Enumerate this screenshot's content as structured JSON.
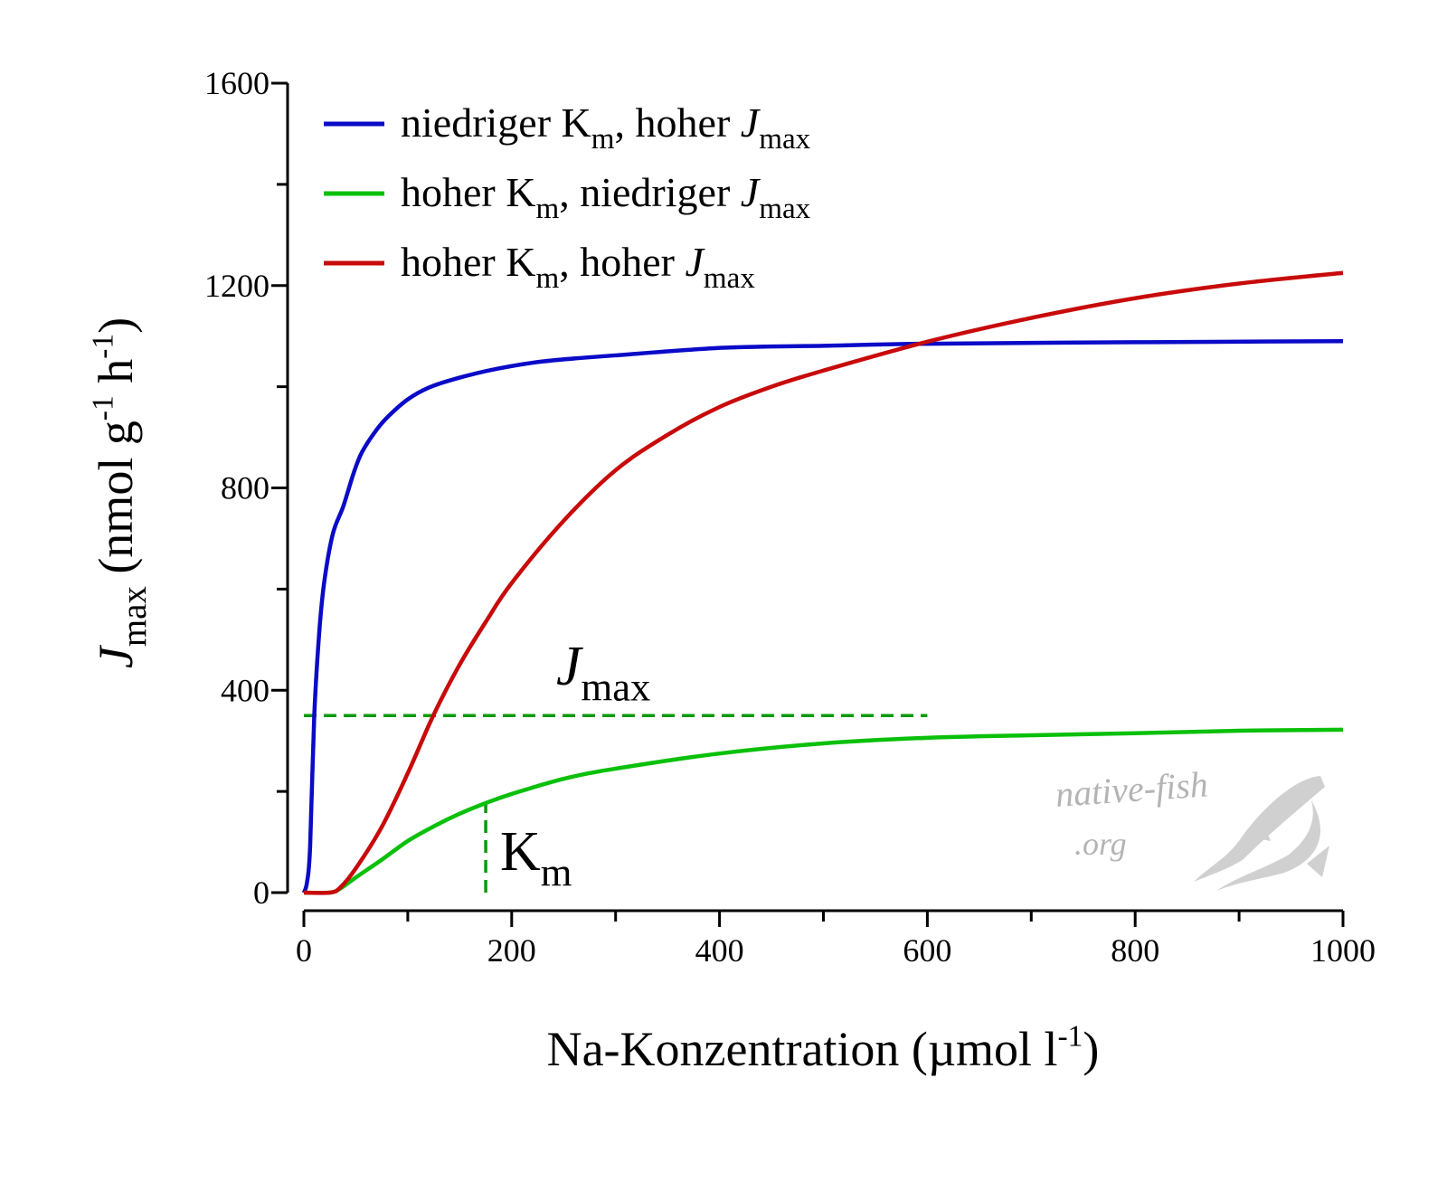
{
  "chart_data": {
    "type": "line",
    "title": "",
    "xlabel": [
      {
        "t": "Na-Konzentration (µmol l",
        "s": "n"
      },
      {
        "t": "-1",
        "s": "sup"
      },
      {
        "t": ")",
        "s": "n"
      }
    ],
    "ylabel": [
      {
        "t": "J",
        "s": "i"
      },
      {
        "t": "max",
        "s": "sub"
      },
      {
        "t": " (nmol g",
        "s": "n"
      },
      {
        "t": "-1",
        "s": "sup"
      },
      {
        "t": " h",
        "s": "n"
      },
      {
        "t": "-1",
        "s": "sup"
      },
      {
        "t": ")",
        "s": "n"
      }
    ],
    "xlim": [
      0,
      1000
    ],
    "ylim": [
      0,
      1600
    ],
    "xticks": [
      "0",
      "200",
      "400",
      "600",
      "800",
      "1000"
    ],
    "xtick_values": [
      0,
      200,
      400,
      600,
      800,
      1000
    ],
    "xminor": [
      100,
      300,
      500,
      700,
      900
    ],
    "yticks": [
      "0",
      "400",
      "800",
      "1200",
      "1600"
    ],
    "ytick_values": [
      0,
      400,
      800,
      1200,
      1600
    ],
    "yminor": [
      200,
      600,
      1000,
      1400
    ],
    "grid": false,
    "legend_position": "top-left",
    "series": [
      {
        "name": "niedriger Km, hoher Jmax",
        "color": "#0a0ac8",
        "label": [
          {
            "t": "niedriger K",
            "s": "n"
          },
          {
            "t": "m",
            "s": "sub"
          },
          {
            "t": ", hoher ",
            "s": "n"
          },
          {
            "t": "J",
            "s": "i"
          },
          {
            "t": "max",
            "s": "sub"
          }
        ],
        "x": [
          0,
          3,
          6,
          10,
          15,
          20,
          28,
          38,
          48,
          56,
          70,
          82,
          100,
          120,
          143,
          180,
          230,
          300,
          404,
          500,
          600,
          800,
          1000
        ],
        "y": [
          0,
          20,
          90,
          350,
          520,
          620,
          710,
          764,
          830,
          871,
          915,
          943,
          975,
          998,
          1014,
          1033,
          1050,
          1062,
          1077,
          1081,
          1085,
          1088,
          1090
        ]
      },
      {
        "name": "hoher Km, niedriger Jmax",
        "color": "#0ac00a",
        "label": [
          {
            "t": "hoher K",
            "s": "n"
          },
          {
            "t": "m",
            "s": "sub"
          },
          {
            "t": ", niedriger ",
            "s": "n"
          },
          {
            "t": "J",
            "s": "i"
          },
          {
            "t": "max",
            "s": "sub"
          }
        ],
        "x": [
          0,
          25,
          35,
          50,
          75,
          100,
          125,
          150,
          175,
          200,
          250,
          300,
          400,
          500,
          600,
          700,
          800,
          900,
          1000
        ],
        "y": [
          0,
          0,
          8,
          30,
          65,
          102,
          131,
          156,
          177,
          195,
          225,
          245,
          275,
          295,
          306,
          311,
          315,
          320,
          322
        ]
      },
      {
        "name": "hoher Km, hoher Jmax",
        "color": "#c80a0a",
        "label": [
          {
            "t": "hoher K",
            "s": "n"
          },
          {
            "t": "m",
            "s": "sub"
          },
          {
            "t": ", hoher ",
            "s": "n"
          },
          {
            "t": "J",
            "s": "i"
          },
          {
            "t": "max",
            "s": "sub"
          }
        ],
        "x": [
          0,
          25,
          35,
          50,
          75,
          100,
          125,
          150,
          175,
          200,
          250,
          300,
          350,
          400,
          450,
          500,
          600,
          700,
          800,
          900,
          1000
        ],
        "y": [
          0,
          0,
          10,
          48,
          130,
          236,
          352,
          451,
          535,
          612,
          735,
          835,
          905,
          960,
          1000,
          1032,
          1089,
          1136,
          1175,
          1204,
          1225
        ]
      }
    ],
    "annotations": {
      "jmax_line": {
        "y": 350,
        "x_from": 0,
        "x_to": 600,
        "color": "#0a9a0a",
        "label": [
          {
            "t": "J",
            "s": "i"
          },
          {
            "t": "max",
            "s": "sub"
          }
        ]
      },
      "km_line": {
        "x": 175,
        "y_from": 0,
        "y_to": 177,
        "color": "#0a9a0a",
        "label": [
          {
            "t": "K",
            "s": "n"
          },
          {
            "t": "m",
            "s": "sub"
          }
        ]
      }
    },
    "watermark": {
      "line1": "native-fish",
      "line2": ".org"
    }
  }
}
